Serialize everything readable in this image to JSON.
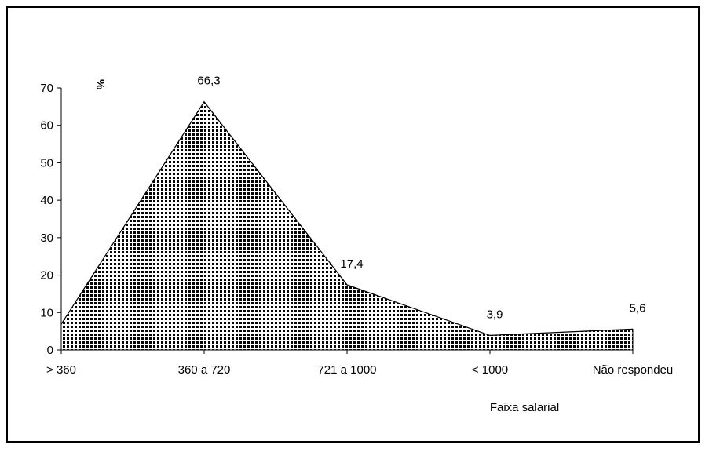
{
  "chart_data": {
    "type": "area",
    "categories": [
      "> 360",
      "360 a 720",
      "721 a 1000",
      "< 1000",
      "Não respondeu"
    ],
    "series": [
      {
        "values": [
          6.9,
          66.3,
          17.4,
          3.9,
          5.6
        ]
      }
    ],
    "data_labels": [
      "",
      "66,3",
      "17,4",
      "3,9",
      "5,6"
    ],
    "ylabel": "%",
    "xlabel": "Faixa salarial",
    "ylim": [
      0,
      70
    ],
    "yticks": [
      0,
      10,
      20,
      30,
      40,
      50,
      60,
      70
    ],
    "grid": false,
    "fill_pattern": "dotted",
    "colors": {
      "fill_dot": "#000000",
      "fill_bg": "#ffffff",
      "line": "#000000"
    }
  }
}
